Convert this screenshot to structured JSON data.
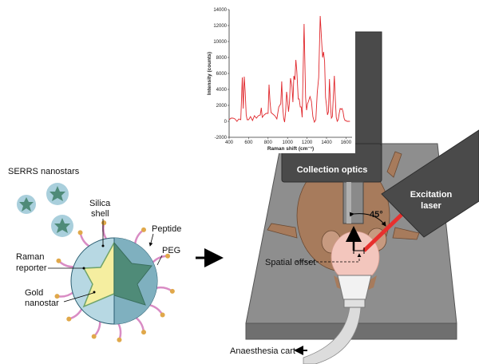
{
  "labels": {
    "serrs_nanostars": "SERRS nanostars",
    "silica_shell": [
      "Silica",
      "shell"
    ],
    "peptide": "Peptide",
    "peg": "PEG",
    "raman_reporter": [
      "Raman",
      "reporter"
    ],
    "gold_nanostar": [
      "Gold",
      "nanostar"
    ],
    "collection_optics": "Collection optics",
    "excitation_laser": [
      "Excitation",
      "laser"
    ],
    "angle": "45°",
    "spatial_offset": "Spatial offset",
    "anaesthesia_cart": "Anaesthesia cart"
  },
  "colors": {
    "spectrum": "#e0262b",
    "laser_beam": "#e8302e",
    "instrument": "#4a4a4a",
    "table": "#8c8c8c",
    "silica": "#a9cfdc",
    "gold": "#f5eea0",
    "star": "#4f8b78",
    "peg": "#d98cc4",
    "peptide": "#e0a84a",
    "mouse": "#a77b5c",
    "skin": "#f3c6bd"
  },
  "chart_data": {
    "type": "line",
    "xlabel": "Raman shift (cm⁻¹)",
    "ylabel": "Intensity (counts)",
    "xlim": [
      400,
      1650
    ],
    "ylim": [
      -2000,
      14000
    ],
    "xticks": [
      "400",
      "600",
      "800",
      "1000",
      "1200",
      "1400",
      "1600"
    ],
    "yticks": [
      "-2000",
      "0",
      "2000",
      "4000",
      "6000",
      "8000",
      "10000",
      "12000",
      "14000"
    ],
    "grid": false,
    "x": [
      400,
      420,
      440,
      460,
      480,
      500,
      520,
      535,
      545,
      555,
      565,
      575,
      585,
      600,
      620,
      640,
      660,
      680,
      700,
      720,
      730,
      740,
      760,
      780,
      800,
      810,
      820,
      830,
      850,
      870,
      890,
      910,
      930,
      940,
      950,
      960,
      970,
      980,
      990,
      1000,
      1010,
      1020,
      1030,
      1045,
      1055,
      1065,
      1075,
      1085,
      1095,
      1110,
      1120,
      1130,
      1140,
      1150,
      1170,
      1185,
      1195,
      1205,
      1215,
      1230,
      1245,
      1260,
      1275,
      1290,
      1305,
      1320,
      1335,
      1350,
      1360,
      1370,
      1380,
      1390,
      1400,
      1410,
      1420,
      1430,
      1440,
      1450,
      1460,
      1470,
      1480,
      1490,
      1500,
      1510,
      1520,
      1530,
      1540,
      1550,
      1560,
      1570,
      1580,
      1590,
      1600,
      1610,
      1620,
      1640
    ],
    "y": [
      200,
      400,
      400,
      300,
      0,
      300,
      200,
      5500,
      1600,
      5600,
      3800,
      800,
      200,
      200,
      600,
      100,
      700,
      400,
      700,
      800,
      1700,
      500,
      800,
      1000,
      1000,
      4600,
      2500,
      1100,
      900,
      700,
      300,
      1800,
      2200,
      5000,
      1800,
      400,
      -100,
      1200,
      3700,
      2600,
      1200,
      2400,
      5400,
      4400,
      2400,
      5700,
      5200,
      7700,
      6300,
      2800,
      2800,
      1800,
      1800,
      500,
      12200,
      3000,
      1400,
      2200,
      2500,
      3100,
      2500,
      600,
      -100,
      200,
      3600,
      5500,
      13200,
      10000,
      8000,
      8700,
      7500,
      3000,
      2000,
      800,
      1200,
      5300,
      2100,
      400,
      600,
      3000,
      5700,
      2800,
      500,
      0,
      200,
      1000,
      1600,
      1500,
      1600,
      1200,
      400,
      100,
      100,
      0,
      0,
      0
    ]
  }
}
